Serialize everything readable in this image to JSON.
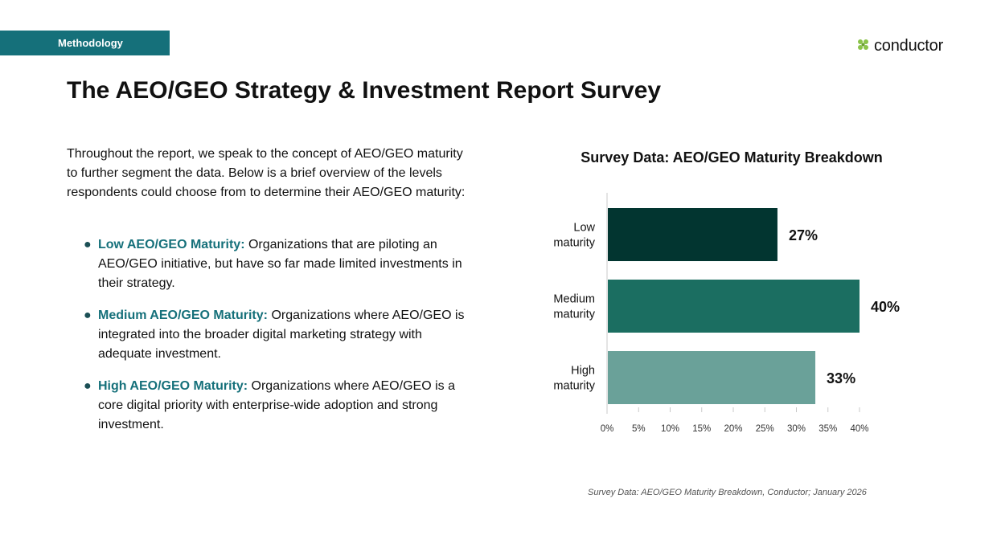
{
  "header": {
    "section_tag": "Methodology",
    "logo_text": "conductor",
    "logo_icon": "conductor-logo-icon",
    "logo_color": "#8bc34a"
  },
  "title": "The AEO/GEO Strategy & Investment Report Survey",
  "intro": "Throughout the report, we speak to the concept of AEO/GEO maturity to further segment the data. Below is a brief overview of the levels respondents could choose from to determine their AEO/GEO maturity:",
  "levels": [
    {
      "term": "Low AEO/GEO Maturity:",
      "description": "Organizations that are piloting an AEO/GEO initiative, but have so far made limited investments in their strategy."
    },
    {
      "term": "Medium AEO/GEO Maturity:",
      "description": "Organizations where AEO/GEO is integrated into the broader digital marketing strategy with adequate investment."
    },
    {
      "term": "High AEO/GEO Maturity:",
      "description": "Organizations where AEO/GEO is a core digital priority with enterprise-wide adoption and strong investment."
    }
  ],
  "chart_data": {
    "type": "bar",
    "orientation": "horizontal",
    "title": "Survey Data: AEO/GEO Maturity Breakdown",
    "categories": [
      [
        "Low",
        "maturity"
      ],
      [
        "Medium",
        "maturity"
      ],
      [
        "High",
        "maturity"
      ]
    ],
    "values": [
      27,
      40,
      33
    ],
    "value_labels": [
      "27%",
      "40%",
      "33%"
    ],
    "colors": [
      "#023530",
      "#1b6e61",
      "#6aa199"
    ],
    "xlim": [
      0,
      40
    ],
    "xticks": [
      0,
      5,
      10,
      15,
      20,
      25,
      30,
      35,
      40
    ],
    "xtick_labels": [
      "0%",
      "5%",
      "10%",
      "15%",
      "20%",
      "25%",
      "30%",
      "35%",
      "40%"
    ],
    "xlabel": "",
    "ylabel": "",
    "grid": false
  },
  "source": "Survey Data: AEO/GEO Maturity Breakdown, Conductor; January 2026"
}
